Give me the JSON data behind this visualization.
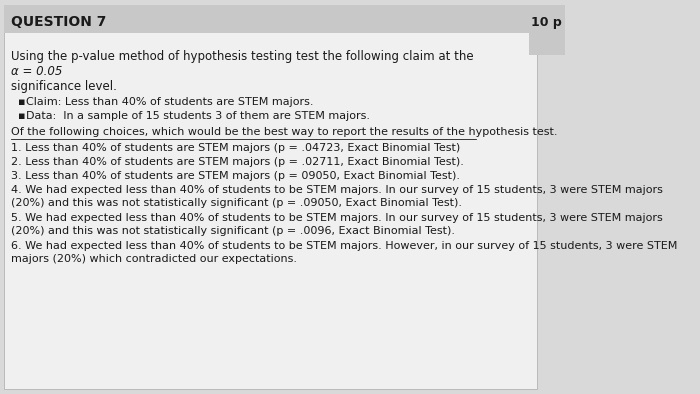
{
  "bg_color": "#d9d9d9",
  "white_box_color": "#f0f0f0",
  "header_color": "#c0c0c0",
  "question_label": "QUESTION 7",
  "points_label": "10 p",
  "intro_line1": "Using the p-value method of hypothesis testing test the following claim at the",
  "intro_line2": "α = 0.05",
  "intro_line3": "significance level.",
  "bullet1": "Claim: Less than 40% of students are STEM majors.",
  "bullet2": "Data:  In a sample of 15 students 3 of them are STEM majors.",
  "of_the_following": "Of the following choices, which would be the best way to report the results of the hypothesis test.",
  "choice1": "1. Less than 40% of students are STEM majors (p = .04723, Exact Binomial Test)",
  "choice2": "2. Less than 40% of students are STEM majors (p = .02711, Exact Binomial Test).",
  "choice3": "3. Less than 40% of students are STEM majors (p = 09050, Exact Binomial Test).",
  "choice4a": "4. We had expected less than 40% of students to be STEM majors. In our survey of 15 students, 3 were STEM majors",
  "choice4b": "(20%) and this was not statistically significant (p = .09050, Exact Binomial Test).",
  "choice5a": "5. We had expected less than 40% of students to be STEM majors. In our survey of 15 students, 3 were STEM majors",
  "choice5b": "(20%) and this was not statistically significant (p = .0096, Exact Binomial Test).",
  "choice6a": "6. We had expected less than 40% of students to be STEM majors. However, in our survey of 15 students, 3 were STEM",
  "choice6b": "majors (20%) which contradicted our expectations.",
  "text_color": "#1a1a1a",
  "header_text_color": "#1a1a1a"
}
